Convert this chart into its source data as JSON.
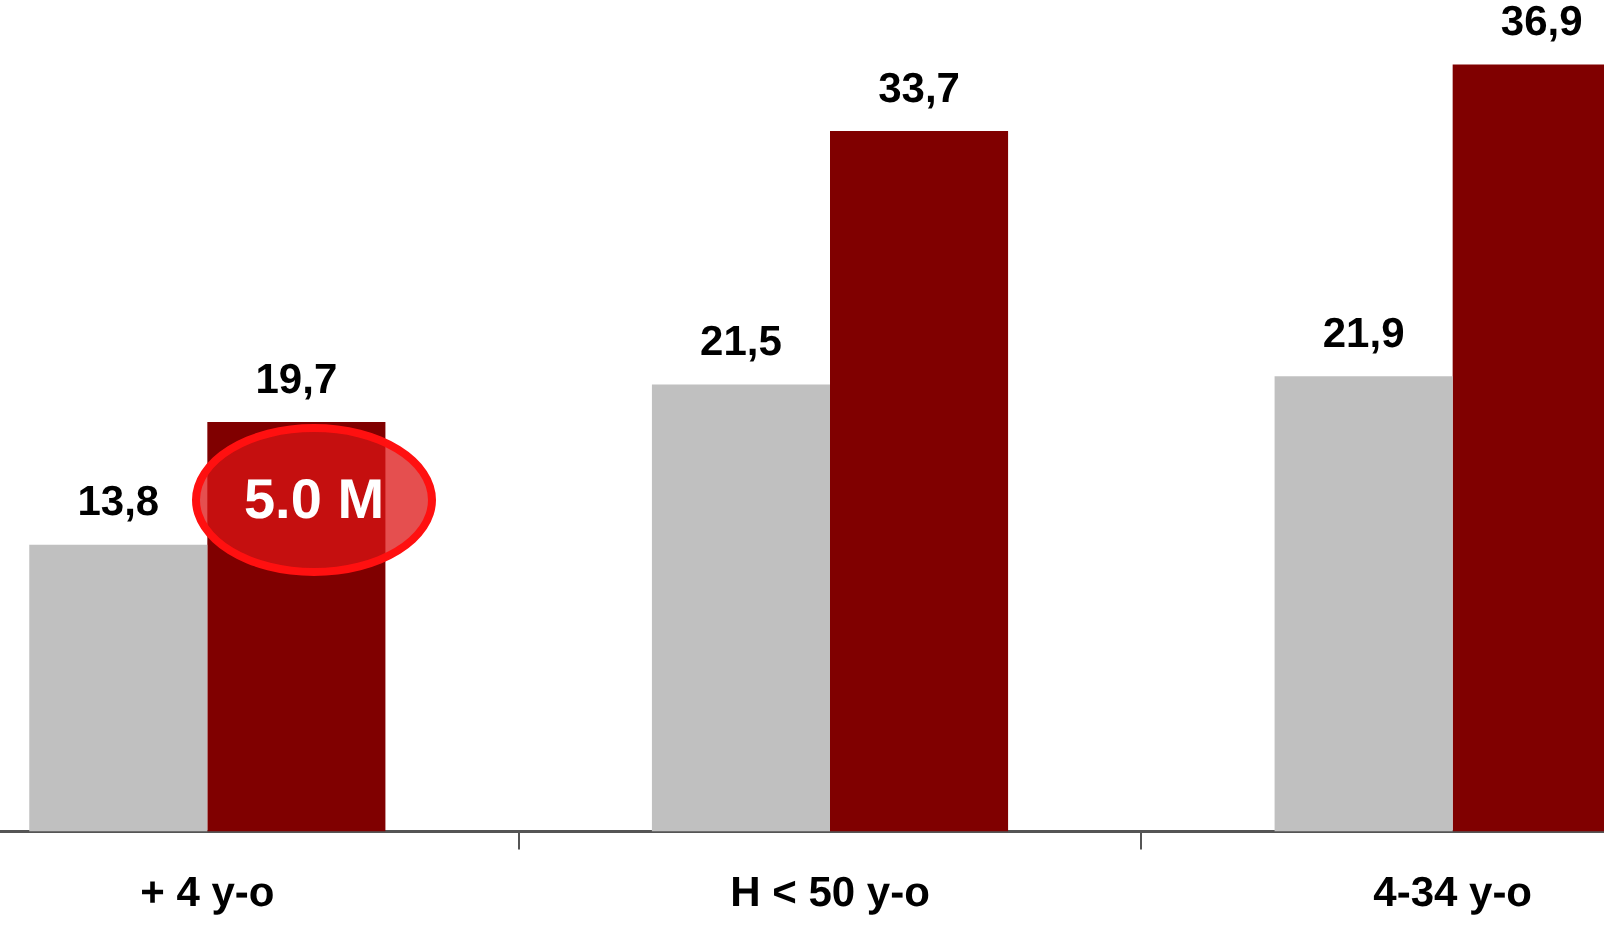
{
  "chart_data": {
    "type": "bar",
    "categories": [
      "+ 4 y-o",
      "H < 50 y-o",
      "4-34 y-o"
    ],
    "series": [
      {
        "color": "#c0c0c0",
        "values": [
          13.8,
          21.5,
          21.9
        ],
        "value_labels": [
          "13,8",
          "21,5",
          "21,9"
        ]
      },
      {
        "color": "#800000",
        "values": [
          19.7,
          33.7,
          36.9
        ],
        "value_labels": [
          "19,7",
          "33,7",
          "36,9"
        ]
      }
    ],
    "tick_labels": "x",
    "annotations": [
      "5.0 M"
    ],
    "grid": false,
    "legend": false
  }
}
